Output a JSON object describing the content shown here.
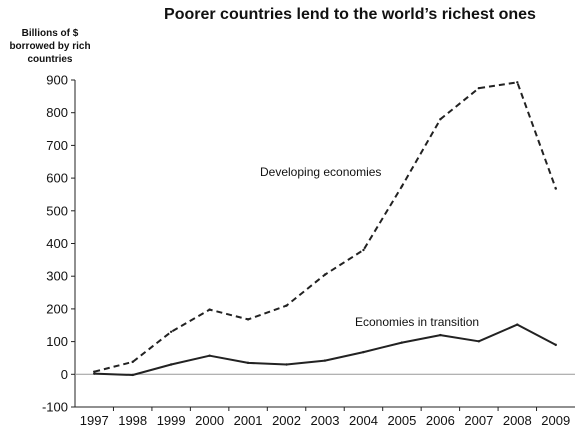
{
  "chart_data": {
    "type": "line",
    "title": "Poorer countries lend to the world’s richest ones",
    "ylabel": "Billions of $ borrowed by rich countries",
    "xlabel": "",
    "x": [
      "1997",
      "1998",
      "1999",
      "2000",
      "2001",
      "2002",
      "2003",
      "2004",
      "2005",
      "2006",
      "2007",
      "2008",
      "2009"
    ],
    "ylim": [
      -100,
      900
    ],
    "yticks": [
      -100,
      0,
      100,
      200,
      300,
      400,
      500,
      600,
      700,
      800,
      900
    ],
    "grid": false,
    "series": [
      {
        "name": "Developing economies",
        "style": "dashed",
        "values": [
          8,
          38,
          130,
          198,
          168,
          210,
          305,
          380,
          575,
          780,
          875,
          893,
          568
        ]
      },
      {
        "name": "Economies in transition",
        "style": "solid",
        "values": [
          2,
          -2,
          30,
          57,
          35,
          30,
          42,
          68,
          97,
          120,
          101,
          152,
          90
        ]
      }
    ]
  }
}
